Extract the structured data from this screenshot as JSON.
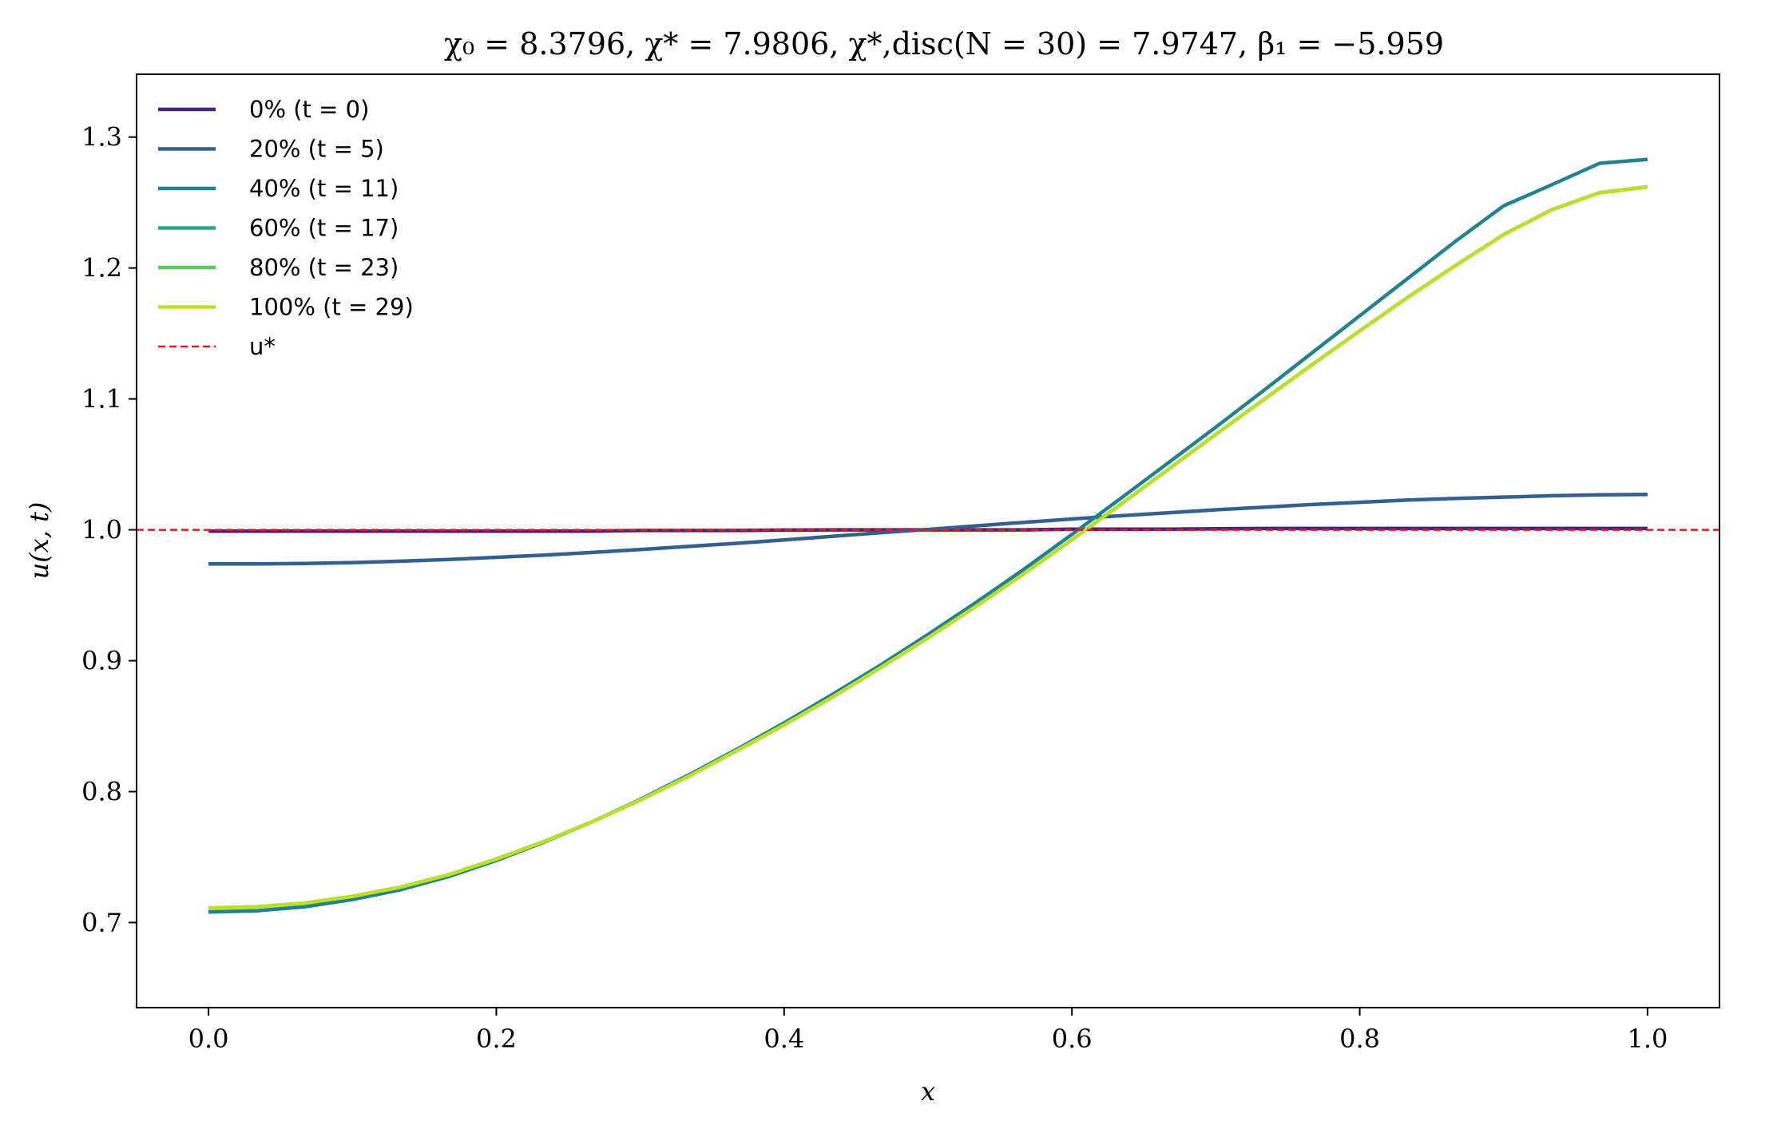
{
  "chart_data": {
    "type": "line",
    "title": "χ₀ = 8.3796,  χ* = 7.9806,  χ*,disc(N = 30) = 7.9747,  β₁ = −5.959",
    "xlabel": "x",
    "ylabel": "u(x, t)",
    "xlim": [
      -0.05,
      1.05
    ],
    "ylim": [
      0.635,
      1.348
    ],
    "xticks": [
      0.0,
      0.2,
      0.4,
      0.6,
      0.8,
      1.0
    ],
    "xtick_labels": [
      "0.0",
      "0.2",
      "0.4",
      "0.6",
      "0.8",
      "1.0"
    ],
    "yticks": [
      0.7,
      0.8,
      0.9,
      1.0,
      1.1,
      1.2,
      1.3
    ],
    "ytick_labels": [
      "0.7",
      "0.8",
      "0.9",
      "1.0",
      "1.1",
      "1.2",
      "1.3"
    ],
    "grid": false,
    "legend_position": "top-left",
    "x": [
      0.0,
      0.0333,
      0.0667,
      0.1,
      0.1333,
      0.1667,
      0.2,
      0.2333,
      0.2667,
      0.3,
      0.3333,
      0.3667,
      0.4,
      0.4333,
      0.4667,
      0.5,
      0.5333,
      0.5667,
      0.6,
      0.6333,
      0.6667,
      0.7,
      0.7333,
      0.7667,
      0.8,
      0.8333,
      0.8667,
      0.9,
      0.9333,
      0.9667,
      1.0
    ],
    "series": [
      {
        "name": "0% (t = 0)",
        "color": "#482677",
        "dashed": false,
        "values": [
          0.999,
          0.999,
          0.999,
          0.999,
          0.999,
          0.999,
          0.999,
          0.999,
          0.999,
          0.9995,
          0.9995,
          0.9995,
          0.9998,
          1.0,
          1.0,
          1.0,
          1.0,
          1.0,
          1.0005,
          1.0005,
          1.0005,
          1.0008,
          1.001,
          1.001,
          1.001,
          1.001,
          1.001,
          1.001,
          1.001,
          1.001,
          1.001
        ]
      },
      {
        "name": "20% (t = 5)",
        "color": "#355f8d",
        "dashed": false,
        "values": [
          0.974,
          0.974,
          0.9743,
          0.975,
          0.976,
          0.9773,
          0.979,
          0.9807,
          0.9827,
          0.985,
          0.9873,
          0.9897,
          0.9923,
          0.995,
          0.9977,
          1.0003,
          1.003,
          1.0057,
          1.0083,
          1.0107,
          1.013,
          1.0153,
          1.0173,
          1.0193,
          1.021,
          1.0227,
          1.024,
          1.025,
          1.026,
          1.0267,
          1.027
        ]
      },
      {
        "name": "40% (t = 11)",
        "color": "#21838e",
        "dashed": false,
        "values": [
          0.708,
          0.709,
          0.712,
          0.7175,
          0.725,
          0.735,
          0.7475,
          0.7615,
          0.777,
          0.794,
          0.8125,
          0.832,
          0.8525,
          0.874,
          0.8965,
          0.92,
          0.9445,
          0.97,
          0.9965,
          1.0235,
          1.051,
          1.0785,
          1.1065,
          1.135,
          1.1635,
          1.192,
          1.2205,
          1.2475,
          1.2635,
          1.28,
          1.283
        ]
      },
      {
        "name": "60% (t = 17)",
        "color": "#25ab82",
        "dashed": false,
        "values": [
          0.711,
          0.712,
          0.7148,
          0.72,
          0.727,
          0.7365,
          0.7485,
          0.762,
          0.777,
          0.7935,
          0.8115,
          0.831,
          0.851,
          0.872,
          0.8945,
          0.9175,
          0.9415,
          0.9665,
          0.9925,
          1.019,
          1.046,
          1.073,
          1.0995,
          1.126,
          1.152,
          1.1775,
          1.202,
          1.2255,
          1.2445,
          1.2575,
          1.262
        ]
      },
      {
        "name": "80% (t = 23)",
        "color": "#5ec962",
        "dashed": false,
        "values": [
          0.711,
          0.712,
          0.7148,
          0.72,
          0.727,
          0.7365,
          0.7485,
          0.762,
          0.777,
          0.7935,
          0.8115,
          0.831,
          0.851,
          0.872,
          0.8945,
          0.9175,
          0.9415,
          0.9665,
          0.9925,
          1.019,
          1.046,
          1.073,
          1.0995,
          1.126,
          1.152,
          1.1775,
          1.202,
          1.2255,
          1.2445,
          1.2575,
          1.262
        ]
      },
      {
        "name": "100% (t = 29)",
        "color": "#bddf26",
        "dashed": false,
        "values": [
          0.711,
          0.712,
          0.7148,
          0.72,
          0.727,
          0.7365,
          0.7485,
          0.762,
          0.777,
          0.7935,
          0.8115,
          0.831,
          0.851,
          0.872,
          0.8945,
          0.9175,
          0.9415,
          0.9665,
          0.9925,
          1.019,
          1.046,
          1.073,
          1.0995,
          1.126,
          1.152,
          1.1775,
          1.202,
          1.2255,
          1.2445,
          1.2575,
          1.262
        ]
      }
    ],
    "reference_line": {
      "name": "u*",
      "y": 1.0,
      "color": "#e41a1c",
      "dashed": true
    }
  }
}
